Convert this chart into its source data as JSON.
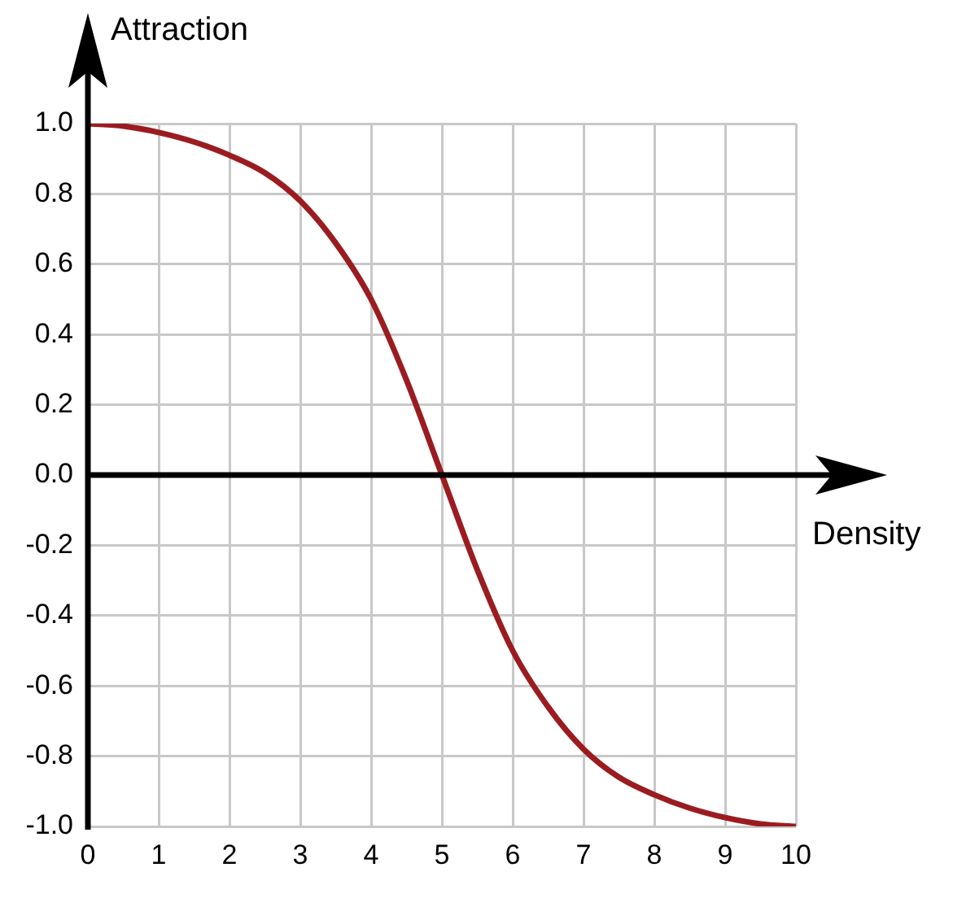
{
  "chart_data": {
    "type": "line",
    "xlabel": "Density",
    "ylabel": "Attraction",
    "x": [
      0,
      0.5,
      1,
      1.5,
      2,
      2.5,
      3,
      3.5,
      4,
      4.5,
      5,
      5.5,
      6,
      6.5,
      7,
      7.5,
      8,
      8.5,
      9,
      9.5,
      10
    ],
    "series": [
      {
        "color": "#9b1c20",
        "values": [
          1.0,
          0.993,
          0.975,
          0.948,
          0.91,
          0.86,
          0.78,
          0.66,
          0.5,
          0.27,
          0.0,
          -0.27,
          -0.5,
          -0.66,
          -0.78,
          -0.86,
          -0.91,
          -0.948,
          -0.975,
          -0.993,
          -1.0
        ]
      }
    ],
    "xlim": [
      0,
      10
    ],
    "xticks": [
      0,
      1,
      2,
      3,
      4,
      5,
      6,
      7,
      8,
      9,
      10
    ],
    "ylim": [
      -1,
      1
    ],
    "yticks": [
      {
        "value": -1,
        "label": "-1.0"
      },
      {
        "value": -0.8,
        "label": "-0.8"
      },
      {
        "value": -0.6,
        "label": "-0.6"
      },
      {
        "value": -0.4,
        "label": "-0.4"
      },
      {
        "value": -0.2,
        "label": "-0.2"
      },
      {
        "value": 0,
        "label": "0.0"
      },
      {
        "value": 0.2,
        "label": "0.2"
      },
      {
        "value": 0.4,
        "label": "0.4"
      },
      {
        "value": 0.6,
        "label": "0.6"
      },
      {
        "value": 0.8,
        "label": "0.8"
      },
      {
        "value": 1,
        "label": "1.0"
      }
    ],
    "grid": true,
    "marker": "none",
    "line_style": "solid"
  }
}
